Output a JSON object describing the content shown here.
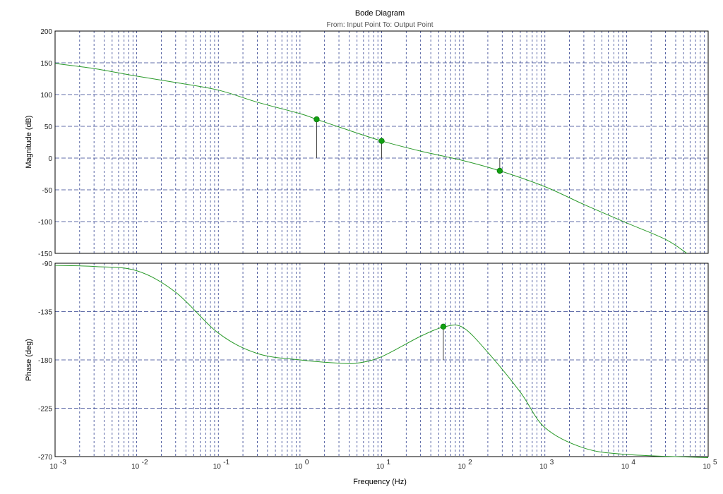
{
  "chart_data": [
    {
      "type": "line",
      "title": "Bode Diagram",
      "subtitle": "From: Input Point  To: Output Point",
      "xlabel": "Frequency  (Hz)",
      "ylabel": "Magnitude (dB)",
      "xscale": "log",
      "xlim": [
        0.001,
        100000
      ],
      "ylim": [
        -150,
        200
      ],
      "yticks": [
        200,
        150,
        100,
        50,
        0,
        -50,
        -100,
        -150
      ],
      "grid": true,
      "series": [
        {
          "x": [
            0.001,
            0.003,
            0.01,
            0.03,
            0.1,
            0.3,
            1,
            1.6,
            3,
            10,
            30,
            100,
            280,
            1000,
            3000,
            10000,
            30000,
            55000
          ],
          "y": [
            149,
            141,
            129,
            119,
            107,
            88,
            70,
            61,
            49,
            27,
            11,
            -4,
            -20,
            -45,
            -73,
            -102,
            -128,
            -150
          ]
        }
      ],
      "markers": [
        {
          "x": 1.6,
          "y": 61
        },
        {
          "x": 10,
          "y": 27
        },
        {
          "x": 280,
          "y": -20
        }
      ]
    },
    {
      "type": "line",
      "xlabel": "Frequency  (Hz)",
      "ylabel": "Phase (deg)",
      "xscale": "log",
      "xlim": [
        0.001,
        100000
      ],
      "ylim": [
        -270,
        -90
      ],
      "yticks": [
        -90,
        -135,
        -180,
        -225,
        -270
      ],
      "grid": true,
      "series": [
        {
          "x": [
            0.001,
            0.003,
            0.01,
            0.03,
            0.1,
            0.3,
            1,
            3,
            5,
            10,
            30,
            60,
            100,
            200,
            500,
            1000,
            3000,
            10000,
            100000
          ],
          "y": [
            -92,
            -93,
            -97,
            -117,
            -155,
            -174,
            -180,
            -183,
            -183,
            -177,
            -158,
            -149,
            -150,
            -173,
            -210,
            -243,
            -262,
            -268,
            -271
          ]
        }
      ],
      "markers": [
        {
          "x": 57,
          "y": -149
        }
      ]
    }
  ],
  "x_tick_labels": [
    "10",
    "10",
    "10",
    "10",
    "10",
    "10",
    "10",
    "10",
    "10"
  ],
  "x_tick_exponents": [
    "-3",
    "-2",
    "-1",
    "0",
    "1",
    "2",
    "3",
    "4",
    "5"
  ],
  "colors": {
    "curve": "#2a9a2a",
    "marker": "#11a011",
    "grid": "#2f3f8f",
    "axis": "#000000"
  }
}
